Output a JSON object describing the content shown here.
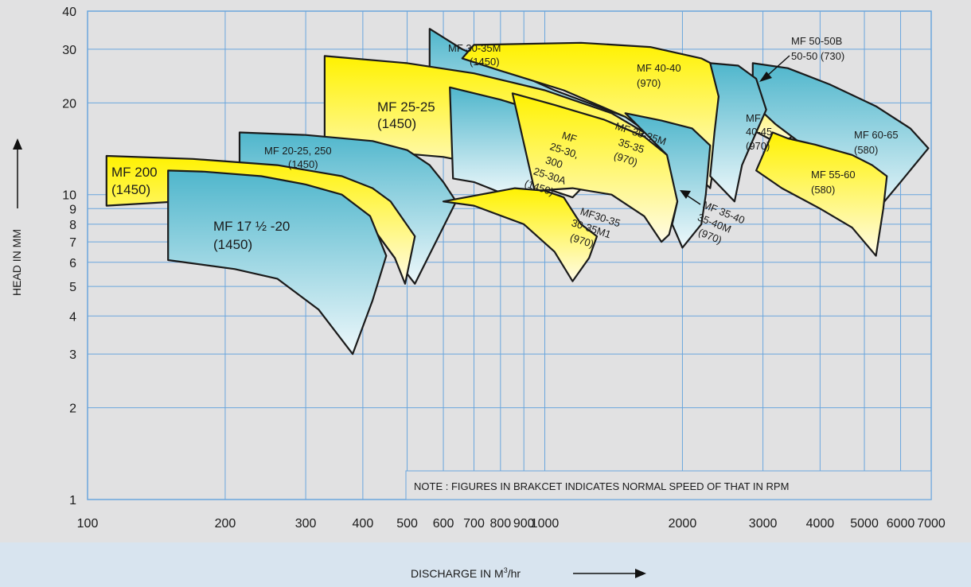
{
  "chart_data": {
    "type": "area",
    "xlabel": "DISCHARGE IN M",
    "xlabel_sup": "3",
    "xlabel_suffix": "/hr",
    "ylabel": "HEAD IN MM",
    "x_scale": "log",
    "y_scale": "log",
    "xlim": [
      100,
      7000
    ],
    "ylim": [
      1,
      40
    ],
    "grid": true,
    "x_ticks": [
      100,
      200,
      300,
      400,
      500,
      600,
      700,
      800,
      900,
      1000,
      2000,
      3000,
      4000,
      5000,
      6000,
      7000
    ],
    "x_tick_labels": [
      "100",
      "200",
      "300",
      "400",
      "500",
      "600",
      "700",
      "800",
      "900",
      "1000",
      "2000",
      "3000",
      "4000",
      "5000",
      "6000",
      "7000"
    ],
    "y_ticks": [
      1,
      2,
      3,
      4,
      5,
      6,
      7,
      8,
      9,
      10,
      20,
      30,
      40
    ],
    "y_tick_labels": [
      "1",
      "2",
      "3",
      "4",
      "5",
      "6",
      "7",
      "8",
      "9",
      "10",
      "20",
      "30",
      "40"
    ],
    "note": "NOTE : FIGURES IN BRAKCET INDICATES NORMAL SPEED OF THAT IN RPM",
    "colors": {
      "yellow_top": "#fff200",
      "yellow_bottom": "#fffbe6",
      "teal_top": "#4fb6cc",
      "teal_bottom": "#eef8fb",
      "grid": "#6aa6dd"
    },
    "bands": [
      {
        "name": "MF 30-35M",
        "rpm": "(1450)",
        "color": "teal",
        "polygon": [
          [
            560,
            35
          ],
          [
            660,
            30
          ],
          [
            1050,
            22
          ],
          [
            1500,
            18
          ],
          [
            2050,
            14.5
          ],
          [
            1950,
            13.5
          ],
          [
            1450,
            16
          ],
          [
            1000,
            19.5
          ],
          [
            700,
            24
          ],
          [
            560,
            26
          ]
        ]
      },
      {
        "name": "MF 40-40",
        "rpm": "(970)",
        "color": "yellow",
        "polygon": [
          [
            700,
            31
          ],
          [
            1200,
            31.5
          ],
          [
            1700,
            30.5
          ],
          [
            2200,
            28
          ],
          [
            2550,
            25
          ],
          [
            2400,
            16
          ],
          [
            2300,
            10.5
          ],
          [
            1900,
            14
          ],
          [
            1500,
            18
          ],
          [
            1100,
            22
          ],
          [
            800,
            25.5
          ],
          [
            660,
            28
          ]
        ]
      },
      {
        "name": "MF 50-50B",
        "rpm": "50-50 (730)",
        "color": "yellow",
        "polygon": [
          [
            2500,
            25
          ],
          [
            3000,
            24
          ],
          [
            3800,
            21.5
          ],
          [
            3700,
            17
          ],
          [
            3300,
            14.5
          ],
          [
            2700,
            17
          ],
          [
            2450,
            20
          ]
        ]
      },
      {
        "name": "MF 60-65",
        "rpm": "(580)",
        "color": "teal",
        "polygon": [
          [
            2850,
            27
          ],
          [
            3400,
            26
          ],
          [
            4200,
            23
          ],
          [
            5300,
            19.5
          ],
          [
            6300,
            16.5
          ],
          [
            6900,
            14.2
          ],
          [
            6000,
            11
          ],
          [
            5200,
            8.5
          ],
          [
            4600,
            11
          ],
          [
            3800,
            14
          ],
          [
            3200,
            17
          ],
          [
            2850,
            20
          ]
        ]
      },
      {
        "name": "MF 40-45",
        "rpm": "(970)",
        "color": "teal",
        "polygon": [
          [
            2300,
            27
          ],
          [
            2650,
            26.5
          ],
          [
            2900,
            24
          ],
          [
            3050,
            19
          ],
          [
            2900,
            16
          ],
          [
            2700,
            12.5
          ],
          [
            2600,
            9.5
          ],
          [
            2300,
            11.5
          ],
          [
            2350,
            16
          ],
          [
            2400,
            21
          ]
        ]
      },
      {
        "name": "MF 55-60",
        "rpm": "(580)",
        "color": "yellow",
        "polygon": [
          [
            3150,
            16
          ],
          [
            3400,
            15.3
          ],
          [
            3900,
            14.6
          ],
          [
            4700,
            13.5
          ],
          [
            5200,
            12.5
          ],
          [
            5600,
            11.5
          ],
          [
            5500,
            9
          ],
          [
            5300,
            6.3
          ],
          [
            4700,
            7.8
          ],
          [
            4000,
            9
          ],
          [
            3300,
            10.5
          ],
          [
            2900,
            12
          ]
        ]
      },
      {
        "name": "MF 25-25",
        "rpm": "(1450)",
        "color": "yellow",
        "polygon": [
          [
            330,
            28.5
          ],
          [
            500,
            27
          ],
          [
            700,
            25
          ],
          [
            1000,
            22
          ],
          [
            1400,
            18.5
          ],
          [
            1650,
            16
          ],
          [
            1500,
            14
          ],
          [
            1350,
            12.5
          ],
          [
            1150,
            9.8
          ],
          [
            1000,
            10.5
          ],
          [
            850,
            12
          ],
          [
            600,
            13.3
          ],
          [
            450,
            13.8
          ],
          [
            330,
            13.5
          ]
        ]
      },
      {
        "name": "MF 20-25, 250",
        "rpm": "(1450)",
        "color": "teal",
        "polygon": [
          [
            215,
            16
          ],
          [
            300,
            15.7
          ],
          [
            420,
            15
          ],
          [
            500,
            14
          ],
          [
            560,
            12.5
          ],
          [
            600,
            11
          ],
          [
            640,
            9.5
          ],
          [
            520,
            5.1
          ],
          [
            470,
            6.2
          ],
          [
            420,
            7.8
          ],
          [
            350,
            9.4
          ],
          [
            270,
            10
          ],
          [
            215,
            10.3
          ]
        ]
      },
      {
        "name": "MF 200",
        "rpm": "(1450)",
        "color": "yellow",
        "polygon": [
          [
            110,
            13.4
          ],
          [
            170,
            13.1
          ],
          [
            260,
            12.5
          ],
          [
            360,
            11.5
          ],
          [
            420,
            10.5
          ],
          [
            460,
            9.5
          ],
          [
            520,
            7.3
          ],
          [
            495,
            5.1
          ],
          [
            470,
            6.2
          ],
          [
            420,
            7.8
          ],
          [
            350,
            9.4
          ],
          [
            260,
            10
          ],
          [
            200,
            9.7
          ],
          [
            110,
            9.2
          ]
        ]
      },
      {
        "name": "MF 17 ½ -20",
        "rpm": "(1450)",
        "color": "teal",
        "polygon": [
          [
            150,
            12
          ],
          [
            180,
            11.9
          ],
          [
            240,
            11.5
          ],
          [
            300,
            10.8
          ],
          [
            360,
            10
          ],
          [
            415,
            8.5
          ],
          [
            450,
            6.3
          ],
          [
            420,
            4.5
          ],
          [
            380,
            3
          ],
          [
            320,
            4.2
          ],
          [
            260,
            5.3
          ],
          [
            210,
            5.7
          ],
          [
            150,
            6.1
          ]
        ]
      },
      {
        "name": "MF 25-30, 300 25-30A",
        "rpm": "(1450)",
        "color": "teal",
        "polygon": [
          [
            620,
            22.5
          ],
          [
            800,
            20.5
          ],
          [
            1000,
            18.5
          ],
          [
            1200,
            15
          ],
          [
            1050,
            12
          ],
          [
            950,
            10.3
          ],
          [
            850,
            9.8
          ],
          [
            700,
            11
          ],
          [
            630,
            11.3
          ]
        ]
      },
      {
        "name": "MF 35-35M 35-35",
        "rpm": "(970)",
        "color": "yellow",
        "polygon": [
          [
            850,
            21.5
          ],
          [
            1050,
            19.7
          ],
          [
            1350,
            17.6
          ],
          [
            1650,
            15.5
          ],
          [
            1850,
            13.5
          ],
          [
            2010,
            12.5
          ],
          [
            1950,
            9.5
          ],
          [
            1870,
            7.4
          ],
          [
            1800,
            7
          ],
          [
            1650,
            8.5
          ],
          [
            1400,
            10
          ],
          [
            1150,
            10.5
          ],
          [
            950,
            10.3
          ]
        ]
      },
      {
        "name": "MF 35-40 35-40M",
        "rpm": "(970)",
        "color": "teal",
        "polygon": [
          [
            1500,
            18.5
          ],
          [
            1800,
            17.5
          ],
          [
            2100,
            16.5
          ],
          [
            2300,
            14.5
          ],
          [
            2250,
            10
          ],
          [
            2200,
            8
          ],
          [
            2000,
            6.7
          ],
          [
            1900,
            8
          ],
          [
            1950,
            9.5
          ],
          [
            1850,
            13.5
          ]
        ]
      },
      {
        "name": "MF30-35 30-35M1",
        "rpm": "(970)",
        "color": "yellow",
        "polygon": [
          [
            860,
            10.5
          ],
          [
            1000,
            10.3
          ],
          [
            1100,
            9.8
          ],
          [
            1200,
            8
          ],
          [
            1300,
            7.3
          ],
          [
            1250,
            6.2
          ],
          [
            1150,
            5.2
          ],
          [
            1050,
            6.5
          ],
          [
            900,
            8
          ],
          [
            700,
            9.2
          ],
          [
            600,
            9.5
          ]
        ]
      }
    ]
  },
  "band_labels": {
    "mf_30_35m": "MF 30-35M",
    "mf_30_35m_rpm": "(1450)",
    "mf_40_40": "MF 40-40",
    "mf_40_40_rpm": "(970)",
    "mf_50_50b": "MF 50-50B",
    "mf_50_50b_sub": "50-50 (730)",
    "mf_60_65": "MF 60-65",
    "mf_60_65_rpm": "(580)",
    "mf_40_45_a": "MF",
    "mf_40_45_b": "40-45",
    "mf_40_45_rpm": "(970)",
    "mf_55_60": "MF 55-60",
    "mf_55_60_rpm": "(580)",
    "mf_25_25": "MF 25-25",
    "mf_25_25_rpm": "(1450)",
    "mf_20_25": "MF 20-25, 250",
    "mf_20_25_rpm": "(1450)",
    "mf_200": "MF 200",
    "mf_200_rpm": "(1450)",
    "mf_17": "MF 17 ½ -20",
    "mf_17_rpm": "(1450)",
    "mf_25_30_a": "MF",
    "mf_25_30_b": "25-30,",
    "mf_25_30_c": "300",
    "mf_25_30_d": "25-30A",
    "mf_25_30_rpm": "(1450)",
    "mf_35_35_a": "MF 35-35M",
    "mf_35_35_b": "35-35",
    "mf_35_35_rpm": "(970)",
    "mf_35_40_a": "MF 35-40",
    "mf_35_40_b": "35-40M",
    "mf_35_40_rpm": "(970)",
    "mf_30_35_a": "MF30-35",
    "mf_30_35_b": "30-35M1",
    "mf_30_35_rpm": "(970)"
  }
}
